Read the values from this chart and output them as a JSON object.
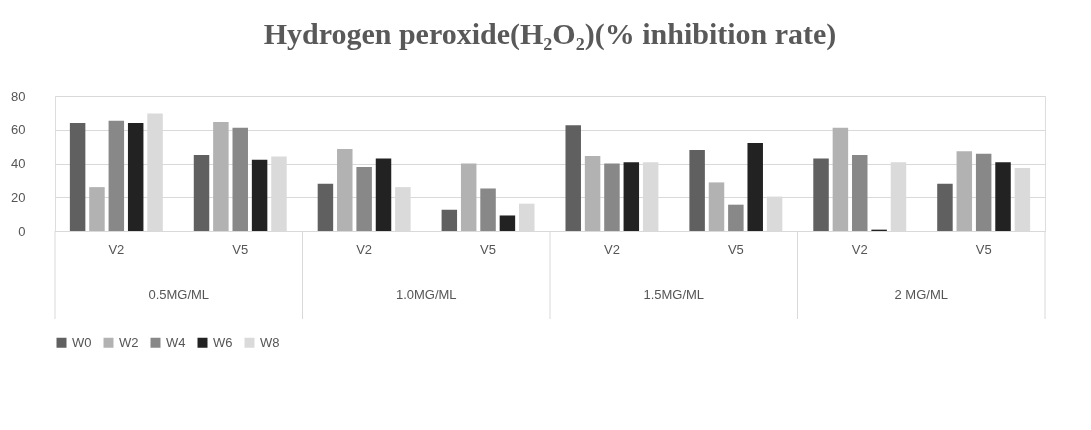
{
  "chart_data": {
    "type": "bar",
    "title": "Hydrogen peroxide(H₂O₂)(% inhibition  rate)",
    "categories": [
      "V2",
      "V5",
      "V2",
      "V5",
      "V2",
      "V5",
      "V2",
      "V5"
    ],
    "annotations": [
      "0.5MG/ML",
      "1.0MG/ML",
      "1.5MG/ML",
      "2 MG/ML"
    ],
    "series": [
      {
        "name": "W0",
        "color": "#606060",
        "values": [
          64,
          45,
          28,
          12.6,
          62.6,
          48,
          43,
          28
        ]
      },
      {
        "name": "W2",
        "color": "#b2b2b2",
        "values": [
          26,
          64.6,
          48.6,
          40,
          44.4,
          28.8,
          61.2,
          47.2
        ]
      },
      {
        "name": "W4",
        "color": "#888888",
        "values": [
          65.4,
          61.2,
          38,
          25.2,
          40,
          15.6,
          45,
          45.8
        ]
      },
      {
        "name": "W6",
        "color": "#222222",
        "values": [
          64,
          42.2,
          43,
          9.2,
          40.8,
          52.2,
          0.8,
          40.8
        ]
      },
      {
        "name": "W8",
        "color": "#dadada",
        "values": [
          69.6,
          44.2,
          26,
          16.2,
          40.8,
          20.4,
          40.8,
          37.4
        ]
      }
    ],
    "ylim": [
      0,
      80
    ],
    "yticks": [
      0,
      20,
      40,
      60,
      80
    ],
    "grid": "y",
    "legend": "bottom"
  }
}
